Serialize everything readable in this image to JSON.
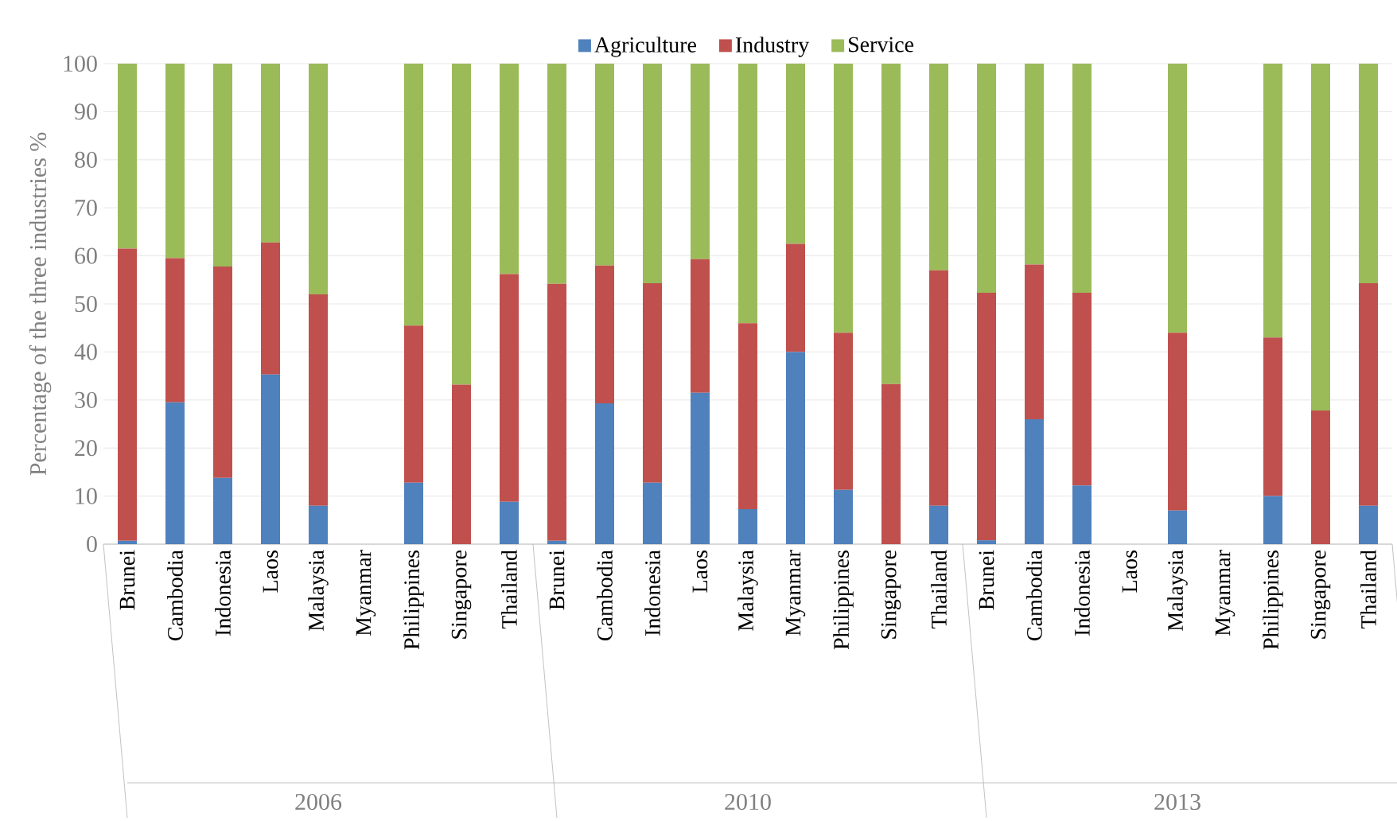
{
  "chart_data": {
    "type": "bar",
    "stacked": true,
    "ylabel": "Percentage of the three industries %",
    "categories": [
      "Brunei",
      "Cambodia",
      "Indonesia",
      "Laos",
      "Malaysia",
      "Myanmar",
      "Philippines",
      "Singapore",
      "Thailand",
      "Brunei",
      "Cambodia",
      "Indonesia",
      "Laos",
      "Malaysia",
      "Myanmar",
      "Philippines",
      "Singapore",
      "Thailand",
      "Brunei",
      "Cambodia",
      "Indonesia",
      "Laos",
      "Malaysia",
      "Myanmar",
      "Philippines",
      "Singapore",
      "Thailand"
    ],
    "annotations": [
      "2006",
      "2010",
      "2013"
    ],
    "series": [
      {
        "name": "Agriculture",
        "color": "#4f81bd",
        "values": [
          0.7,
          29.5,
          13.8,
          35.3,
          8,
          null,
          12.8,
          0,
          8.8,
          0.7,
          29.3,
          12.8,
          31.5,
          7.3,
          40,
          11.3,
          0,
          8,
          0.8,
          26,
          12.2,
          null,
          7,
          null,
          10,
          0,
          8
        ]
      },
      {
        "name": "Industry",
        "color": "#c0504d",
        "values": [
          60.8,
          30,
          44,
          27.5,
          44,
          null,
          32.7,
          33.2,
          47.4,
          53.5,
          28.7,
          41.5,
          27.8,
          38.7,
          22.5,
          32.7,
          33.3,
          49,
          51.5,
          32.2,
          40.1,
          null,
          37,
          null,
          33,
          27.8,
          46.3
        ]
      },
      {
        "name": "Service",
        "color": "#9bbb59",
        "values": [
          38.5,
          40.5,
          42.2,
          37.2,
          48,
          null,
          54.5,
          66.8,
          43.8,
          45.8,
          42,
          45.7,
          40.7,
          54,
          37.5,
          56,
          66.7,
          43,
          47.7,
          41.8,
          47.7,
          null,
          56,
          null,
          57,
          72.2,
          45.7
        ]
      }
    ],
    "ylim": [
      0,
      100
    ],
    "yticks": [
      0,
      10,
      20,
      30,
      40,
      50,
      60,
      70,
      80,
      90,
      100
    ],
    "grid": "y",
    "legend": "top"
  }
}
